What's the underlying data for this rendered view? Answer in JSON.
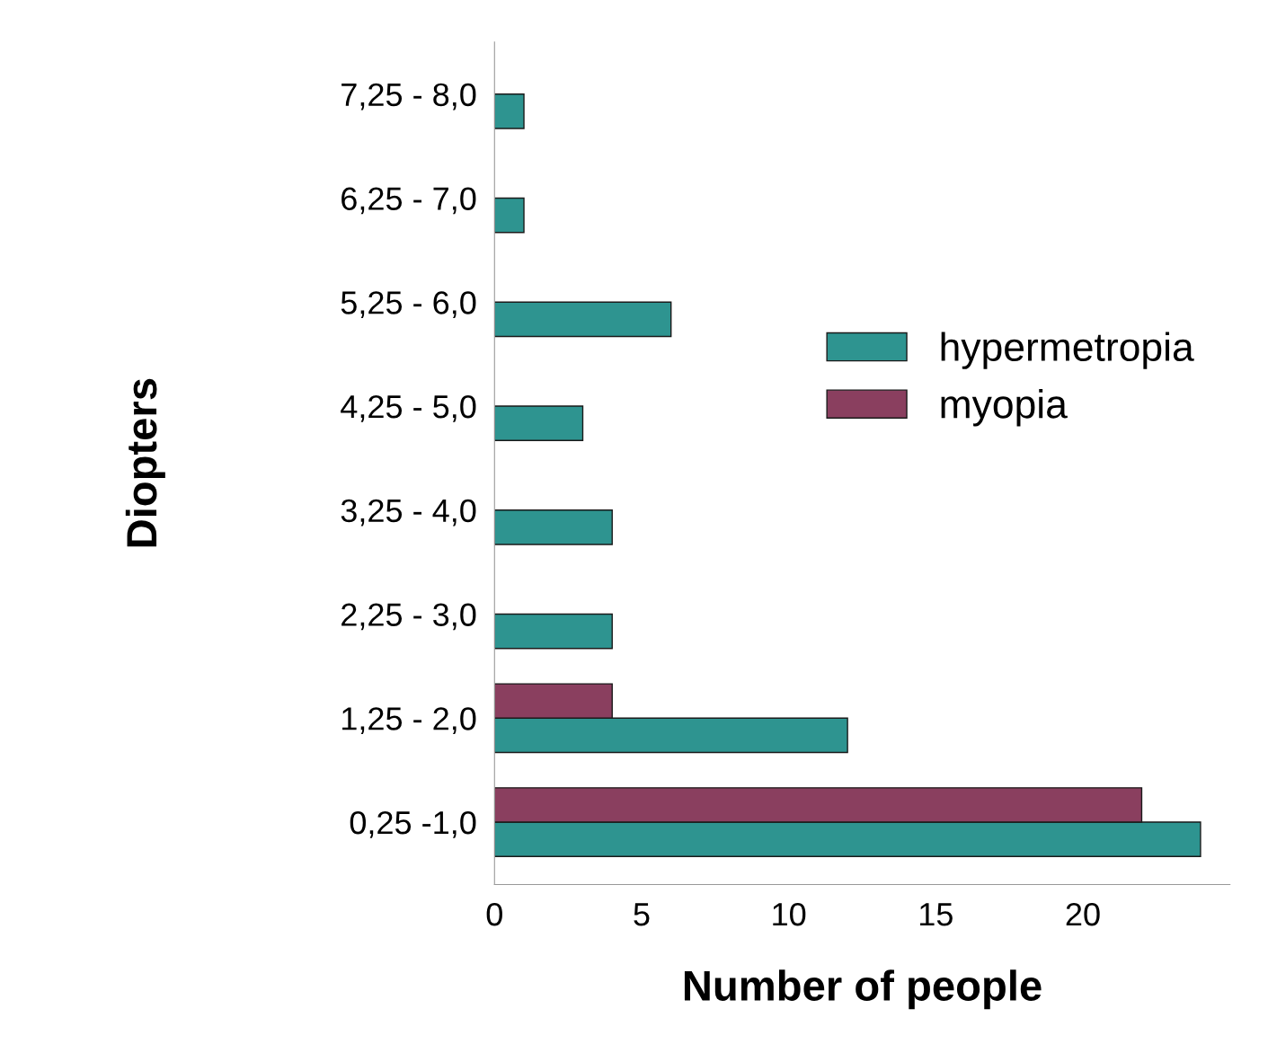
{
  "chart_data": {
    "type": "bar",
    "orientation": "horizontal",
    "xlabel": "Number of people",
    "ylabel": "Diopters",
    "categories": [
      "7,25 - 8,0",
      "6,25 - 7,0",
      "5,25 - 6,0",
      "4,25 - 5,0",
      "3,25 - 4,0",
      "2,25 - 3,0",
      "1,25 - 2,0",
      "0,25 -1,0"
    ],
    "series": [
      {
        "name": "hypermetropia",
        "color": "#2e9490",
        "values": [
          1,
          1,
          6,
          3,
          4,
          4,
          12,
          24
        ]
      },
      {
        "name": "myopia",
        "color": "#8a3f5f",
        "values": [
          null,
          null,
          null,
          null,
          null,
          null,
          4,
          22
        ]
      }
    ],
    "xlim": [
      0,
      25
    ],
    "xticks": [
      0,
      5,
      10,
      15,
      20
    ],
    "grid": false,
    "legend": "right"
  }
}
